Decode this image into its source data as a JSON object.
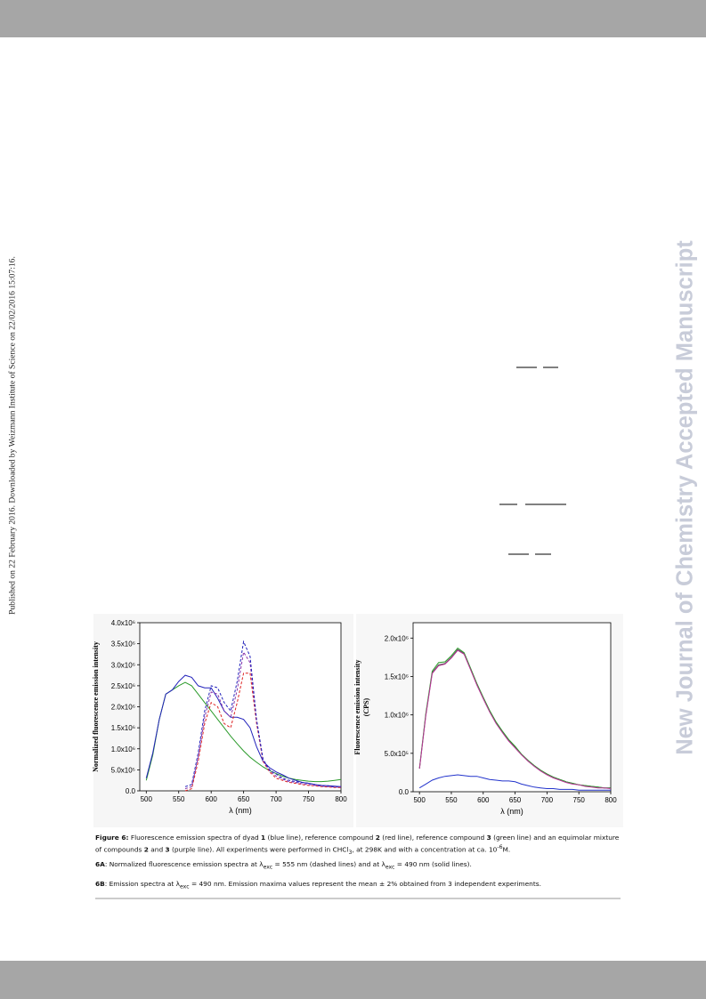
{
  "sidebar_left": "Published on 22 February 2016. Downloaded by Weizmann Institute of Science on 22/02/2016 15:07:16.",
  "sidebar_right": "New Journal of Chemistry Accepted Manuscript",
  "caption": {
    "main": [
      "Figure 6:",
      " Fluorescence emission spectra of dyad ",
      "1",
      " (blue line), reference compound ",
      "2",
      " (red line), reference compound ",
      "3",
      " (green line) and an equimolar mixture of compounds ",
      "2",
      " and ",
      "3",
      " (purple line). All experiments were performed in CHCl",
      "3",
      ", at 298K and with a concentration at ca. 10",
      "-6",
      "M."
    ],
    "a": [
      "6A",
      ": Normalized fluorescence emission spectra at λ",
      "exc",
      " = 555 nm (dashed lines) and at λ",
      "exc",
      " = 490 nm (solid lines)."
    ],
    "b": [
      "6B",
      ": Emission spectra at λ",
      "exc",
      " = 490 nm. Emission maxima values represent the mean ± 2% obtained from 3 independent experiments."
    ]
  },
  "chart_data": [
    {
      "type": "line",
      "y_label": "Normalized fluorescence emission intensity",
      "x_label": "λ (nm)",
      "xlim": [
        490,
        800
      ],
      "xticks": [
        500,
        550,
        600,
        650,
        700,
        750,
        800
      ],
      "ylim": [
        0,
        4000000
      ],
      "yticks": [
        {
          "value": 0,
          "label": "0.0"
        },
        {
          "value": 500000,
          "label": "5.0x10⁵"
        },
        {
          "value": 1000000,
          "label": "1.0x10⁶"
        },
        {
          "value": 1500000,
          "label": "1.5x10⁶"
        },
        {
          "value": 2000000,
          "label": "2.0x10⁶"
        },
        {
          "value": 2500000,
          "label": "2.5x10⁶"
        },
        {
          "value": 3000000,
          "label": "3.0x10⁶"
        },
        {
          "value": 3500000,
          "label": "3.5x10⁶"
        },
        {
          "value": 4000000,
          "label": "4.0x10⁶"
        }
      ],
      "series": [
        {
          "color": "#2a9a2a",
          "dash": false,
          "x": [
            500,
            510,
            520,
            530,
            540,
            550,
            560,
            570,
            580,
            590,
            600,
            610,
            620,
            630,
            640,
            650,
            660,
            670,
            680,
            690,
            700,
            710,
            720,
            730,
            740,
            750,
            760,
            770,
            780,
            790,
            800
          ],
          "values": [
            250000,
            850000,
            1700000,
            2300000,
            2400000,
            2500000,
            2580000,
            2500000,
            2300000,
            2100000,
            1900000,
            1700000,
            1500000,
            1300000,
            1120000,
            950000,
            800000,
            680000,
            570000,
            480000,
            410000,
            350000,
            300000,
            270000,
            250000,
            230000,
            220000,
            220000,
            230000,
            250000,
            270000
          ]
        },
        {
          "color": "#2222bb",
          "dash": false,
          "x": [
            500,
            510,
            520,
            530,
            540,
            550,
            560,
            570,
            580,
            590,
            600,
            610,
            620,
            630,
            640,
            650,
            660,
            670,
            680,
            690,
            700,
            710,
            720,
            730,
            740,
            750,
            760,
            770,
            780,
            790,
            800
          ],
          "values": [
            300000,
            900000,
            1700000,
            2300000,
            2400000,
            2600000,
            2750000,
            2700000,
            2500000,
            2450000,
            2450000,
            2200000,
            1900000,
            1750000,
            1750000,
            1700000,
            1500000,
            1050000,
            700000,
            550000,
            450000,
            380000,
            300000,
            250000,
            200000,
            180000,
            150000,
            130000,
            120000,
            110000,
            100000
          ]
        },
        {
          "color": "#dd2222",
          "dash": true,
          "x": [
            560,
            570,
            580,
            590,
            600,
            610,
            620,
            630,
            640,
            650,
            660,
            670,
            680,
            690,
            700,
            710,
            720,
            730,
            740,
            750,
            760,
            770,
            780,
            790,
            800
          ],
          "values": [
            0,
            50000,
            700000,
            1600000,
            2100000,
            2000000,
            1600000,
            1500000,
            2100000,
            2800000,
            2800000,
            1600000,
            700000,
            450000,
            300000,
            250000,
            200000,
            180000,
            150000,
            130000,
            120000,
            100000,
            90000,
            80000,
            80000
          ]
        },
        {
          "color": "#8833aa",
          "dash": true,
          "x": [
            560,
            570,
            580,
            590,
            600,
            610,
            620,
            630,
            640,
            650,
            660,
            670,
            680,
            690,
            700,
            710,
            720,
            730,
            740,
            750,
            760,
            770,
            780,
            790,
            800
          ],
          "values": [
            50000,
            100000,
            800000,
            1750000,
            2350000,
            2300000,
            1900000,
            1750000,
            2400000,
            3300000,
            3050000,
            1650000,
            720000,
            480000,
            350000,
            280000,
            220000,
            200000,
            170000,
            150000,
            130000,
            110000,
            100000,
            90000,
            90000
          ]
        },
        {
          "color": "#2222bb",
          "dash": true,
          "x": [
            560,
            570,
            580,
            590,
            600,
            610,
            620,
            630,
            640,
            650,
            660,
            670,
            680,
            690,
            700,
            710,
            720,
            730,
            740,
            750,
            760,
            770,
            780,
            790,
            800
          ],
          "values": [
            100000,
            150000,
            900000,
            1900000,
            2500000,
            2450000,
            2100000,
            1900000,
            2600000,
            3550000,
            3200000,
            1700000,
            750000,
            500000,
            400000,
            300000,
            250000,
            220000,
            200000,
            180000,
            150000,
            130000,
            120000,
            100000,
            100000
          ]
        }
      ]
    },
    {
      "type": "line",
      "y_label": "Fluorescence emission intensity",
      "y_label_2": "(CPS)",
      "x_label": "λ (nm)",
      "xlim": [
        490,
        800
      ],
      "xticks": [
        500,
        550,
        600,
        650,
        700,
        750,
        800
      ],
      "ylim": [
        0,
        2200000
      ],
      "yticks": [
        {
          "value": 0,
          "label": "0.0"
        },
        {
          "value": 500000,
          "label": "5.0x10⁵"
        },
        {
          "value": 1000000,
          "label": "1.0x10⁶"
        },
        {
          "value": 1500000,
          "label": "1.5x10⁶"
        },
        {
          "value": 2000000,
          "label": "2.0x10⁶"
        }
      ],
      "series": [
        {
          "color": "#555555",
          "dash": false,
          "x": [
            500,
            510,
            520,
            530,
            540,
            550,
            560,
            570,
            580,
            590,
            600,
            610,
            620,
            630,
            640,
            650,
            660,
            670,
            680,
            690,
            700,
            710,
            720,
            730,
            740,
            750,
            760,
            770,
            780,
            790,
            800
          ],
          "values": [
            300000,
            1000000,
            1550000,
            1650000,
            1670000,
            1750000,
            1850000,
            1800000,
            1600000,
            1400000,
            1220000,
            1050000,
            900000,
            780000,
            670000,
            580000,
            490000,
            410000,
            340000,
            280000,
            230000,
            190000,
            160000,
            130000,
            110000,
            90000,
            80000,
            70000,
            60000,
            50000,
            50000
          ]
        },
        {
          "color": "#2a9a2a",
          "dash": false,
          "x": [
            500,
            510,
            520,
            530,
            540,
            550,
            560,
            570,
            580,
            590,
            600,
            610,
            620,
            630,
            640,
            650,
            660,
            670,
            680,
            690,
            700,
            710,
            720,
            730,
            740,
            750,
            760,
            770,
            780,
            790,
            800
          ],
          "values": [
            310000,
            1020000,
            1570000,
            1680000,
            1690000,
            1770000,
            1870000,
            1810000,
            1610000,
            1410000,
            1230000,
            1060000,
            910000,
            790000,
            680000,
            590000,
            490000,
            410000,
            340000,
            280000,
            230000,
            190000,
            160000,
            130000,
            110000,
            90000,
            80000,
            70000,
            60000,
            50000,
            50000
          ]
        },
        {
          "color": "#bb3399",
          "dash": false,
          "x": [
            500,
            510,
            520,
            530,
            540,
            550,
            560,
            570,
            580,
            590,
            600,
            610,
            620,
            630,
            640,
            650,
            660,
            670,
            680,
            690,
            700,
            710,
            720,
            730,
            740,
            750,
            760,
            770,
            780,
            790,
            800
          ],
          "values": [
            300000,
            990000,
            1540000,
            1640000,
            1660000,
            1740000,
            1840000,
            1790000,
            1590000,
            1390000,
            1210000,
            1040000,
            890000,
            770000,
            660000,
            570000,
            480000,
            400000,
            330000,
            270000,
            220000,
            180000,
            150000,
            120000,
            100000,
            90000,
            70000,
            60000,
            50000,
            50000,
            40000
          ]
        },
        {
          "color": "#2233cc",
          "dash": false,
          "x": [
            500,
            510,
            520,
            530,
            540,
            550,
            560,
            570,
            580,
            590,
            600,
            610,
            620,
            630,
            640,
            650,
            660,
            670,
            680,
            690,
            700,
            710,
            720,
            730,
            740,
            750,
            760,
            770,
            780,
            790,
            800
          ],
          "values": [
            50000,
            100000,
            150000,
            180000,
            200000,
            210000,
            220000,
            210000,
            200000,
            200000,
            180000,
            160000,
            150000,
            140000,
            140000,
            130000,
            100000,
            80000,
            60000,
            50000,
            40000,
            40000,
            30000,
            30000,
            30000,
            20000,
            20000,
            20000,
            20000,
            20000,
            20000
          ]
        }
      ]
    }
  ]
}
